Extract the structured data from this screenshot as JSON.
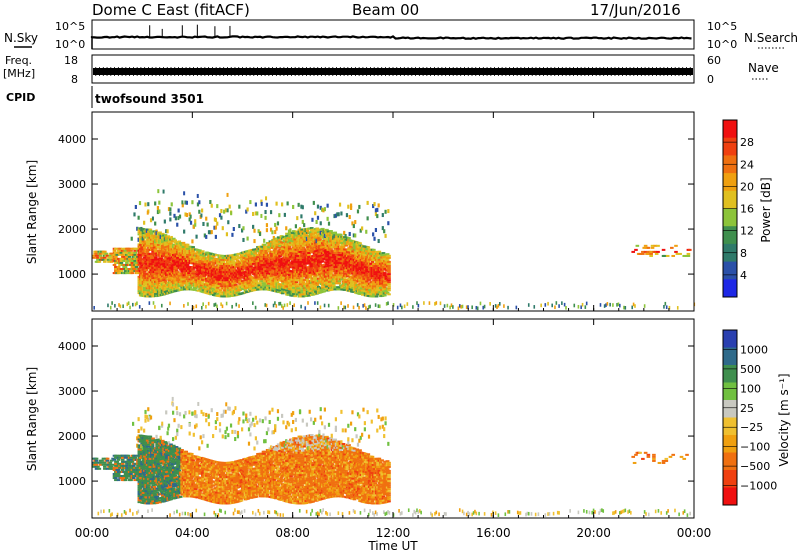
{
  "header": {
    "station": "Dome C East (fitACF)",
    "beam": "Beam 00",
    "date": "17/Jun/2016"
  },
  "strips": {
    "nsky_label": "N.Sky",
    "nsky_ticks": [
      "10^5",
      "10^0"
    ],
    "nsearch_label": "N.Search",
    "freq_label_1": "Freq.",
    "freq_label_2": "[MHz]",
    "freq_ticks_left": [
      "18",
      "8"
    ],
    "nave_label": "Nave",
    "nave_ticks_right": [
      "60",
      "0"
    ],
    "cpid_label": "CPID",
    "cpid_value": "twofsound 3501"
  },
  "colors": {
    "power": [
      "#1e28e6",
      "#2a50a8",
      "#2f7a6a",
      "#3f8f4e",
      "#8cc43a",
      "#e0c020",
      "#f0a010",
      "#f07010",
      "#f04010",
      "#f01010"
    ],
    "velocity": [
      "#f01010",
      "#f04010",
      "#f07010",
      "#f0a010",
      "#f0c030",
      "#c8c8c0",
      "#70c040",
      "#3f8f4e",
      "#2f6a8a",
      "#2a40b0"
    ]
  },
  "chart_data": [
    {
      "type": "heatmap",
      "name": "power-panel",
      "ylabel": "Slant Range [km]",
      "ylim": [
        180,
        4600
      ],
      "yticks": [
        1000,
        2000,
        3000,
        4000
      ],
      "xlim": [
        0,
        24
      ],
      "xticks": [
        0,
        4,
        8,
        12,
        16,
        20,
        24
      ],
      "colorbar": {
        "label": "Power [dB]",
        "ticks": [
          "4",
          "8",
          "12",
          "16",
          "20",
          "24",
          "28"
        ],
        "range": [
          0,
          32
        ]
      }
    },
    {
      "type": "heatmap",
      "name": "velocity-panel",
      "ylabel": "Slant Range [km]",
      "ylim": [
        180,
        4600
      ],
      "yticks": [
        1000,
        2000,
        3000,
        4000
      ],
      "xlim": [
        0,
        24
      ],
      "xticks": [
        0,
        4,
        8,
        12,
        16,
        20,
        24
      ],
      "xticklabels": [
        "00:00",
        "04:00",
        "08:00",
        "12:00",
        "16:00",
        "20:00",
        "00:00"
      ],
      "xlabel": "Time UT",
      "colorbar": {
        "label": "Velocity [m s⁻¹]",
        "ticks": [
          "1000",
          "500",
          "100",
          "25",
          "−25",
          "−100",
          "−500",
          "−1000"
        ]
      }
    }
  ]
}
